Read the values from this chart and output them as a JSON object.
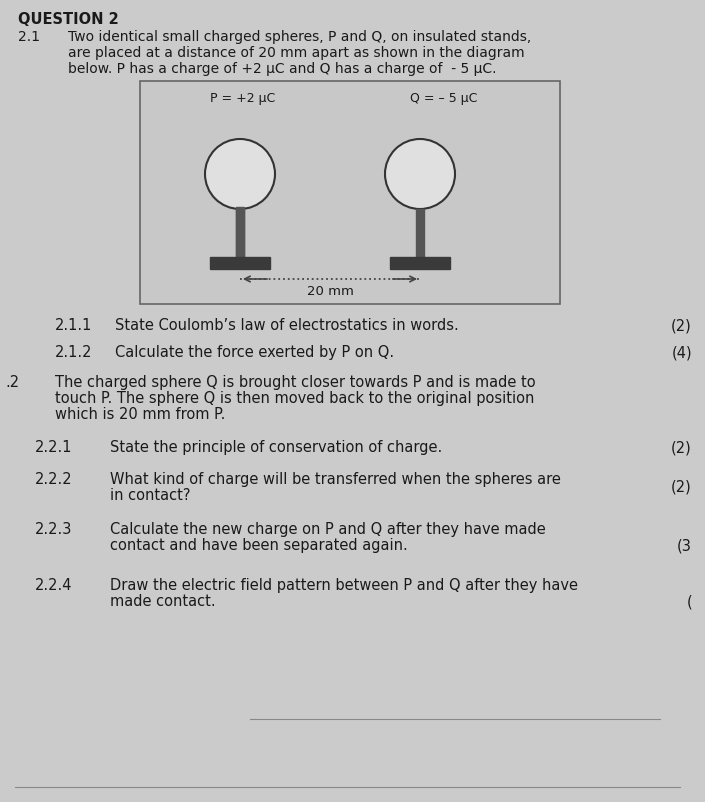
{
  "bg_color": "#cbcbcb",
  "title": "QUESTION 2",
  "section_21_label": "2.1",
  "section_21_text_l1": "Two identical small charged spheres, P and Q, on insulated stands,",
  "section_21_text_l2": "are placed at a distance of 20 mm apart as shown in the diagram",
  "section_21_text_l3": "below. P has a charge of +2 μC and Q has a charge of  - 5 μC.",
  "sphere_P_label": "P = +2 μC",
  "sphere_Q_label": "Q = – 5 μC",
  "distance_label": "20 mm",
  "sub_211": "2.1.1",
  "text_211": "State Coulomb’s law of electrostatics in words.",
  "marks_211": "(2)",
  "sub_212": "2.1.2",
  "text_212": "Calculate the force exerted by P on Q.",
  "marks_212": "(4)",
  "section_22_label": ".2",
  "section_22_text_l1": "The charged sphere Q is brought closer towards P and is made to",
  "section_22_text_l2": "touch P. The sphere Q is then moved back to the original position",
  "section_22_text_l3": "which is 20 mm from P.",
  "sub_221": "2.2.1",
  "text_221": "State the principle of conservation of charge.",
  "marks_221": "(2)",
  "sub_222": "2.2.2",
  "text_222_l1": "What kind of charge will be transferred when the spheres are",
  "text_222_l2": "in contact?",
  "marks_222": "(2)",
  "sub_223": "2.2.3",
  "text_223_l1": "Calculate the new charge on P and Q after they have made",
  "text_223_l2": "contact and have been separated again.",
  "marks_223": "(3",
  "sub_224": "2.2.4",
  "text_224_l1": "Draw the electric field pattern between P and Q after they have",
  "text_224_l2": "made contact.",
  "marks_224": "(",
  "text_color": "#1a1a1a",
  "stand_color": "#555555",
  "base_color": "#3a3a3a",
  "sphere_facecolor": "#e0e0e0",
  "sphere_edgecolor": "#333333",
  "box_facecolor": "#c8c8c8",
  "box_edgecolor": "#666666",
  "arrow_color": "#444444",
  "line_color": "#888888"
}
